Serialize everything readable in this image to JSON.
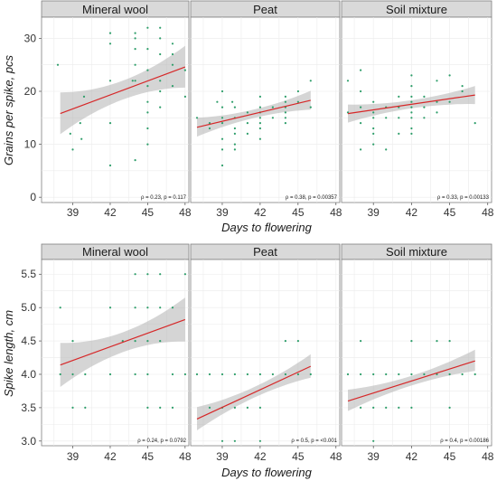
{
  "chart_data": [
    {
      "type": "scatter",
      "ylabel": "Grains per spike, pcs",
      "xlabel": "Days to flowering",
      "xlim": [
        36.5,
        48.3
      ],
      "ylim": [
        -1,
        34
      ],
      "xticks": [
        39,
        42,
        45,
        48
      ],
      "yticks": [
        0,
        10,
        20,
        30
      ],
      "grid": true,
      "facets": [
        {
          "name": "Mineral wool",
          "annotation": "ρ = 0.23, p = 0.117",
          "fit": {
            "x": [
              38,
              48
            ],
            "y": [
              15.8,
              24.6
            ],
            "ci_low": [
              11.8,
              20.8
            ],
            "ci_high": [
              19.8,
              28.6
            ]
          },
          "points": [
            [
              37.8,
              25
            ],
            [
              38.8,
              12
            ],
            [
              39,
              9
            ],
            [
              39.6,
              14
            ],
            [
              39.7,
              11
            ],
            [
              39.9,
              19
            ],
            [
              42,
              29
            ],
            [
              42,
              31
            ],
            [
              42,
              22
            ],
            [
              42,
              14
            ],
            [
              42,
              6
            ],
            [
              43.8,
              22
            ],
            [
              44,
              31
            ],
            [
              44,
              30
            ],
            [
              44,
              28
            ],
            [
              44,
              25
            ],
            [
              44,
              22
            ],
            [
              44,
              7
            ],
            [
              45,
              32
            ],
            [
              45,
              28
            ],
            [
              45,
              24
            ],
            [
              45,
              21
            ],
            [
              45,
              18
            ],
            [
              45,
              16
            ],
            [
              45,
              13
            ],
            [
              45,
              10
            ],
            [
              46,
              32
            ],
            [
              46,
              30
            ],
            [
              46,
              27
            ],
            [
              46,
              22
            ],
            [
              46,
              20
            ],
            [
              46,
              17
            ],
            [
              47,
              29
            ],
            [
              47,
              27
            ],
            [
              47,
              25
            ],
            [
              47,
              21
            ],
            [
              48,
              24
            ],
            [
              48,
              19
            ]
          ]
        },
        {
          "name": "Peat",
          "annotation": "ρ = 0.38, p = 0.00357",
          "fit": {
            "x": [
              37,
              46
            ],
            "y": [
              13.2,
              18.3
            ],
            "ci_low": [
              11.7,
              16.3
            ],
            "ci_high": [
              14.8,
              20.3
            ]
          },
          "points": [
            [
              37,
              15
            ],
            [
              38,
              14
            ],
            [
              38,
              13
            ],
            [
              38.6,
              18
            ],
            [
              39,
              20
            ],
            [
              39,
              17
            ],
            [
              39,
              15
            ],
            [
              39,
              14
            ],
            [
              39,
              11
            ],
            [
              39,
              9
            ],
            [
              39,
              6
            ],
            [
              39.8,
              18
            ],
            [
              40,
              17
            ],
            [
              40,
              15
            ],
            [
              40,
              13
            ],
            [
              40,
              12
            ],
            [
              40,
              10
            ],
            [
              40,
              9
            ],
            [
              41,
              16
            ],
            [
              41,
              14
            ],
            [
              41,
              12
            ],
            [
              42,
              19
            ],
            [
              42,
              17
            ],
            [
              42,
              16
            ],
            [
              42,
              15
            ],
            [
              42,
              14
            ],
            [
              42,
              13
            ],
            [
              42,
              11
            ],
            [
              43,
              17
            ],
            [
              43,
              15
            ],
            [
              44,
              19
            ],
            [
              44,
              18
            ],
            [
              44,
              17
            ],
            [
              44,
              16
            ],
            [
              44,
              15
            ],
            [
              44,
              14
            ],
            [
              45,
              20
            ],
            [
              45,
              18
            ],
            [
              46,
              22
            ],
            [
              46,
              17
            ]
          ]
        },
        {
          "name": "Soil mixture",
          "annotation": "ρ = 0.33, p = 0.00133",
          "fit": {
            "x": [
              37,
              47
            ],
            "y": [
              15.8,
              19.3
            ],
            "ci_low": [
              14.2,
              17.5
            ],
            "ci_high": [
              17.4,
              21.1
            ]
          },
          "points": [
            [
              37,
              22
            ],
            [
              37,
              16
            ],
            [
              38,
              24
            ],
            [
              38,
              20
            ],
            [
              38,
              17
            ],
            [
              38,
              14
            ],
            [
              38,
              9
            ],
            [
              39,
              18
            ],
            [
              39,
              16
            ],
            [
              39,
              15
            ],
            [
              39,
              13
            ],
            [
              39,
              12
            ],
            [
              39,
              10
            ],
            [
              40,
              17
            ],
            [
              40,
              15
            ],
            [
              40,
              9
            ],
            [
              41,
              19
            ],
            [
              41,
              17
            ],
            [
              41,
              15
            ],
            [
              41,
              12
            ],
            [
              42,
              23
            ],
            [
              42,
              21
            ],
            [
              42,
              19
            ],
            [
              42,
              18
            ],
            [
              42,
              17
            ],
            [
              42,
              16
            ],
            [
              42,
              15
            ],
            [
              42,
              13
            ],
            [
              42,
              12
            ],
            [
              43,
              19
            ],
            [
              43,
              17
            ],
            [
              43,
              15
            ],
            [
              44,
              22
            ],
            [
              44,
              18
            ],
            [
              44,
              16
            ],
            [
              45,
              23
            ],
            [
              45,
              18
            ],
            [
              46,
              21
            ],
            [
              46,
              20
            ],
            [
              47,
              14
            ]
          ]
        }
      ]
    },
    {
      "type": "scatter",
      "ylabel": "Spike length, cm",
      "xlabel": "Days to flowering",
      "xlim": [
        36.5,
        48.3
      ],
      "ylim": [
        2.93,
        5.72
      ],
      "xticks": [
        39,
        42,
        45,
        48
      ],
      "yticks": [
        3.0,
        3.5,
        4.0,
        4.5,
        5.0,
        5.5
      ],
      "ytick_labels": [
        "3.0",
        "3.5",
        "4.0",
        "4.5",
        "5.0",
        "5.5"
      ],
      "grid": true,
      "facets": [
        {
          "name": "Mineral wool",
          "annotation": "ρ = 0.24, p = 0.0792",
          "fit": {
            "x": [
              38,
              48
            ],
            "y": [
              4.14,
              4.82
            ],
            "ci_low": [
              3.82,
              4.48
            ],
            "ci_high": [
              4.46,
              5.16
            ]
          },
          "points": [
            [
              38,
              5.0
            ],
            [
              38,
              4.0
            ],
            [
              39,
              4.5
            ],
            [
              39,
              3.5
            ],
            [
              39,
              4.0
            ],
            [
              40,
              4.0
            ],
            [
              40,
              3.5
            ],
            [
              42,
              5.0
            ],
            [
              42,
              4.0
            ],
            [
              43,
              4.5
            ],
            [
              44,
              5.5
            ],
            [
              44,
              5.0
            ],
            [
              44,
              4.5
            ],
            [
              44,
              4.0
            ],
            [
              45,
              5.5
            ],
            [
              45,
              5.0
            ],
            [
              45,
              4.5
            ],
            [
              45,
              4.0
            ],
            [
              45,
              3.5
            ],
            [
              46,
              5.5
            ],
            [
              46,
              5.0
            ],
            [
              46,
              4.5
            ],
            [
              46,
              3.5
            ],
            [
              47,
              5.0
            ],
            [
              47,
              4.0
            ],
            [
              47,
              3.5
            ],
            [
              48,
              5.5
            ],
            [
              48,
              4.0
            ]
          ]
        },
        {
          "name": "Peat",
          "annotation": "ρ = 0.5, p = <0.001",
          "fit": {
            "x": [
              37,
              46
            ],
            "y": [
              3.33,
              4.12
            ],
            "ci_low": [
              3.19,
              3.92
            ],
            "ci_high": [
              3.47,
              4.34
            ]
          },
          "points": [
            [
              37,
              4.0
            ],
            [
              38,
              4.0
            ],
            [
              38,
              3.5
            ],
            [
              39,
              4.0
            ],
            [
              39,
              3.5
            ],
            [
              39,
              3.0
            ],
            [
              40,
              4.0
            ],
            [
              40,
              3.5
            ],
            [
              40,
              3.0
            ],
            [
              41,
              4.0
            ],
            [
              41,
              3.5
            ],
            [
              42,
              4.0
            ],
            [
              42,
              3.5
            ],
            [
              42,
              3.0
            ],
            [
              43,
              4.0
            ],
            [
              44,
              4.5
            ],
            [
              44,
              4.0
            ],
            [
              45,
              4.5
            ],
            [
              45,
              4.0
            ],
            [
              46,
              4.0
            ]
          ]
        },
        {
          "name": "Soil mixture",
          "annotation": "ρ = 0.4, p = 0.00186",
          "fit": {
            "x": [
              37,
              47
            ],
            "y": [
              3.6,
              4.2
            ],
            "ci_low": [
              3.5,
              4.0
            ],
            "ci_high": [
              3.72,
              4.42
            ]
          },
          "points": [
            [
              37,
              4.0
            ],
            [
              38,
              4.5
            ],
            [
              38,
              4.0
            ],
            [
              38,
              3.5
            ],
            [
              39,
              4.0
            ],
            [
              39,
              3.5
            ],
            [
              39,
              3.0
            ],
            [
              40,
              4.0
            ],
            [
              40,
              3.5
            ],
            [
              41,
              4.0
            ],
            [
              41,
              3.5
            ],
            [
              42,
              4.5
            ],
            [
              42,
              4.0
            ],
            [
              42,
              3.5
            ],
            [
              43,
              4.0
            ],
            [
              44,
              4.5
            ],
            [
              44,
              4.0
            ],
            [
              45,
              4.5
            ],
            [
              45,
              4.0
            ],
            [
              45,
              3.5
            ],
            [
              46,
              4.0
            ],
            [
              47,
              4.0
            ]
          ]
        }
      ]
    }
  ],
  "colors": {
    "point": "#2e9e6a",
    "fit_line": "#d62728",
    "ci_band": "#b3b3b3",
    "strip": "#d9d9d9"
  }
}
